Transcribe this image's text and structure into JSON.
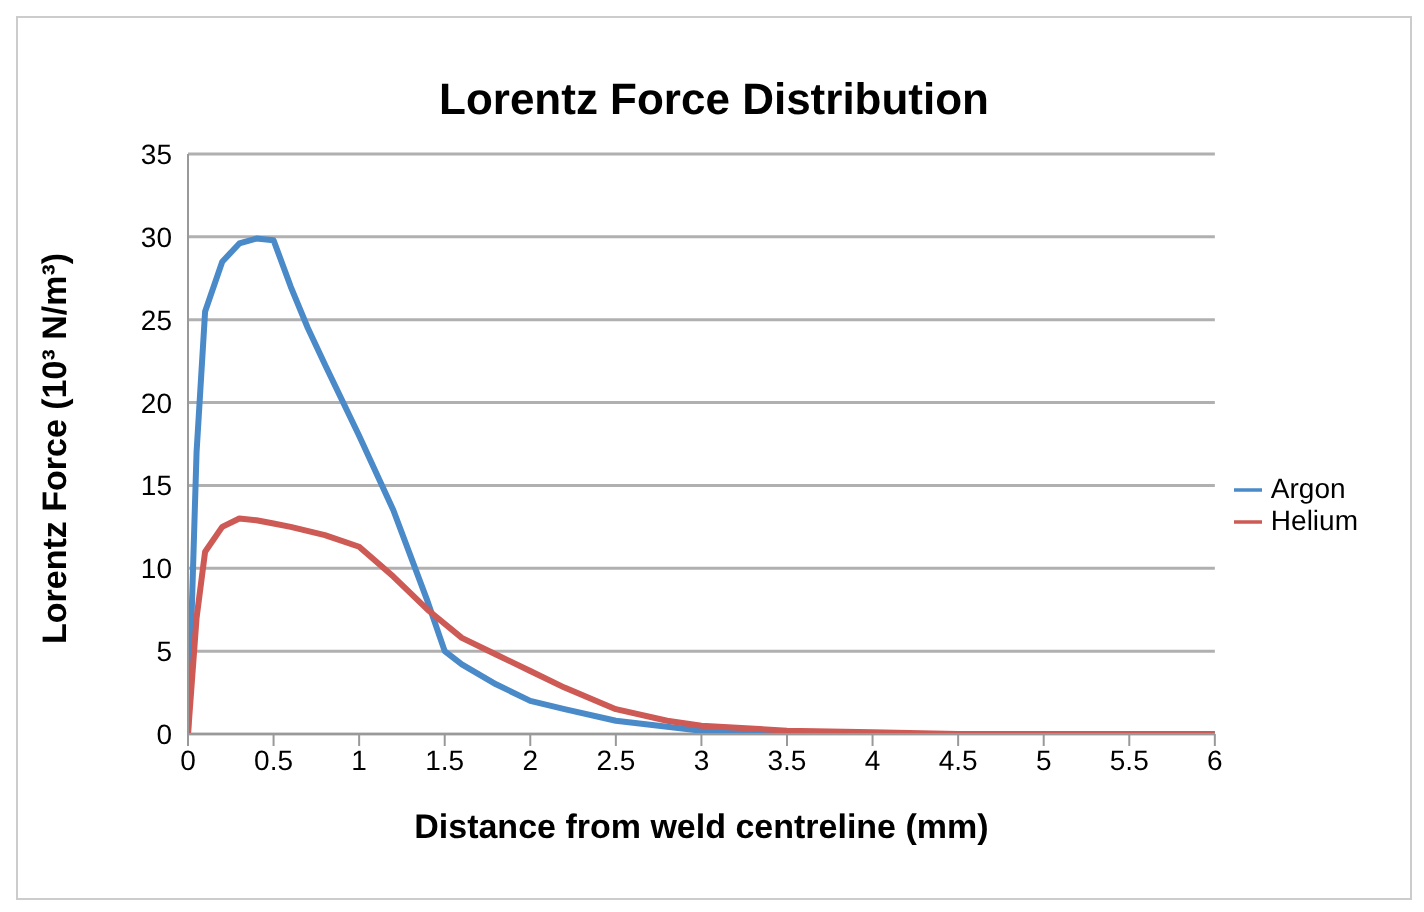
{
  "chart_data": {
    "type": "line",
    "title": "Lorentz Force Distribution",
    "xlabel": "Distance from weld centreline (mm)",
    "ylabel": "Lorentz Force (10³ N/m³)",
    "xlim": [
      0,
      6
    ],
    "xticks": [
      0,
      0.5,
      1,
      1.5,
      2,
      2.5,
      3,
      3.5,
      4,
      4.5,
      5,
      5.5,
      6
    ],
    "ylim": [
      0,
      35
    ],
    "yticks": [
      0,
      5,
      10,
      15,
      20,
      25,
      30,
      35
    ],
    "grid": "y",
    "legend": "right",
    "marker": "none",
    "series": [
      {
        "name": "Argon",
        "color": "#4a8ac9",
        "x": [
          0,
          0.05,
          0.1,
          0.2,
          0.3,
          0.4,
          0.5,
          0.6,
          0.7,
          0.8,
          1.0,
          1.2,
          1.4,
          1.5,
          1.6,
          1.8,
          2.0,
          2.2,
          2.5,
          3.0,
          3.5,
          4.0,
          6.0
        ],
        "values": [
          0,
          17,
          25.5,
          28.5,
          29.6,
          29.9,
          29.8,
          27,
          24.5,
          22.3,
          18,
          13.5,
          8,
          5,
          4.2,
          3,
          2,
          1.5,
          0.8,
          0.2,
          0.1,
          0,
          0
        ]
      },
      {
        "name": "Helium",
        "color": "#cd5a55",
        "x": [
          0,
          0.05,
          0.1,
          0.2,
          0.3,
          0.4,
          0.5,
          0.6,
          0.8,
          1.0,
          1.2,
          1.4,
          1.6,
          1.8,
          2.0,
          2.2,
          2.5,
          2.8,
          3.0,
          3.5,
          4.0,
          4.5,
          6.0
        ],
        "values": [
          0,
          7,
          11,
          12.5,
          13,
          12.9,
          12.7,
          12.5,
          12,
          11.3,
          9.5,
          7.5,
          5.8,
          4.8,
          3.8,
          2.8,
          1.5,
          0.8,
          0.5,
          0.2,
          0.1,
          0,
          0
        ]
      }
    ]
  }
}
